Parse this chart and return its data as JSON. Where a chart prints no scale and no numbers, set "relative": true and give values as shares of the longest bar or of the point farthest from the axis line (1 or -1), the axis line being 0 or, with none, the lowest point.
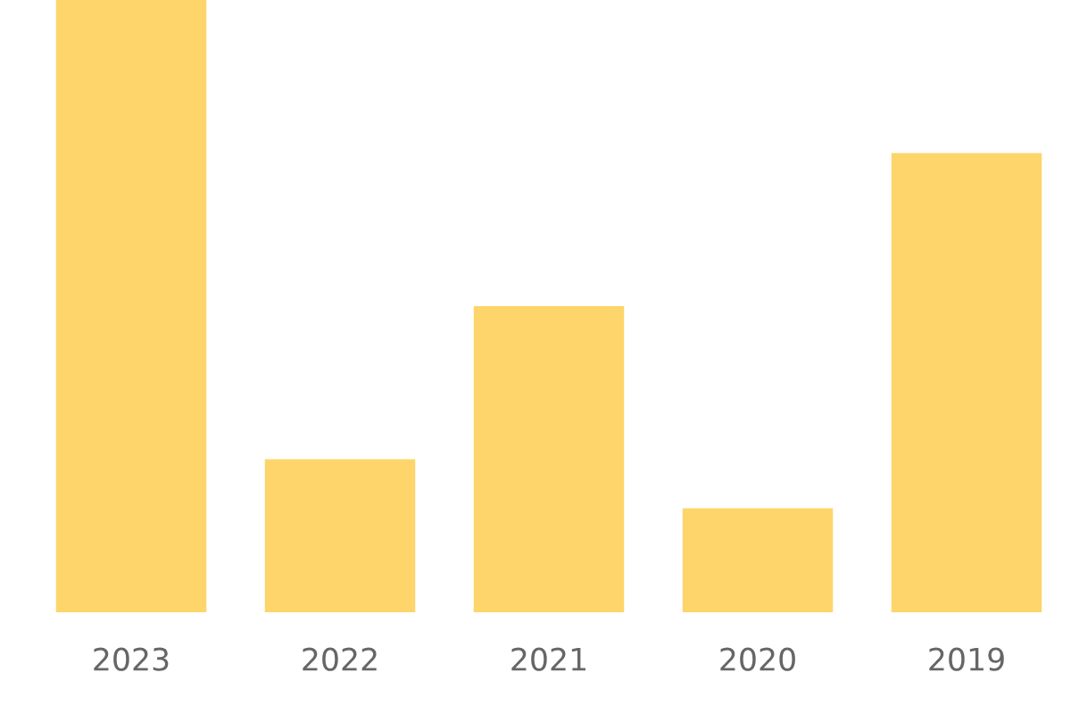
{
  "chart_data": {
    "type": "bar",
    "relative": true,
    "categories": [
      "2023",
      "2022",
      "2021",
      "2020",
      "2019"
    ],
    "values": [
      1,
      0.25,
      0.5,
      0.17,
      0.75
    ],
    "color": "#fdd56a"
  }
}
